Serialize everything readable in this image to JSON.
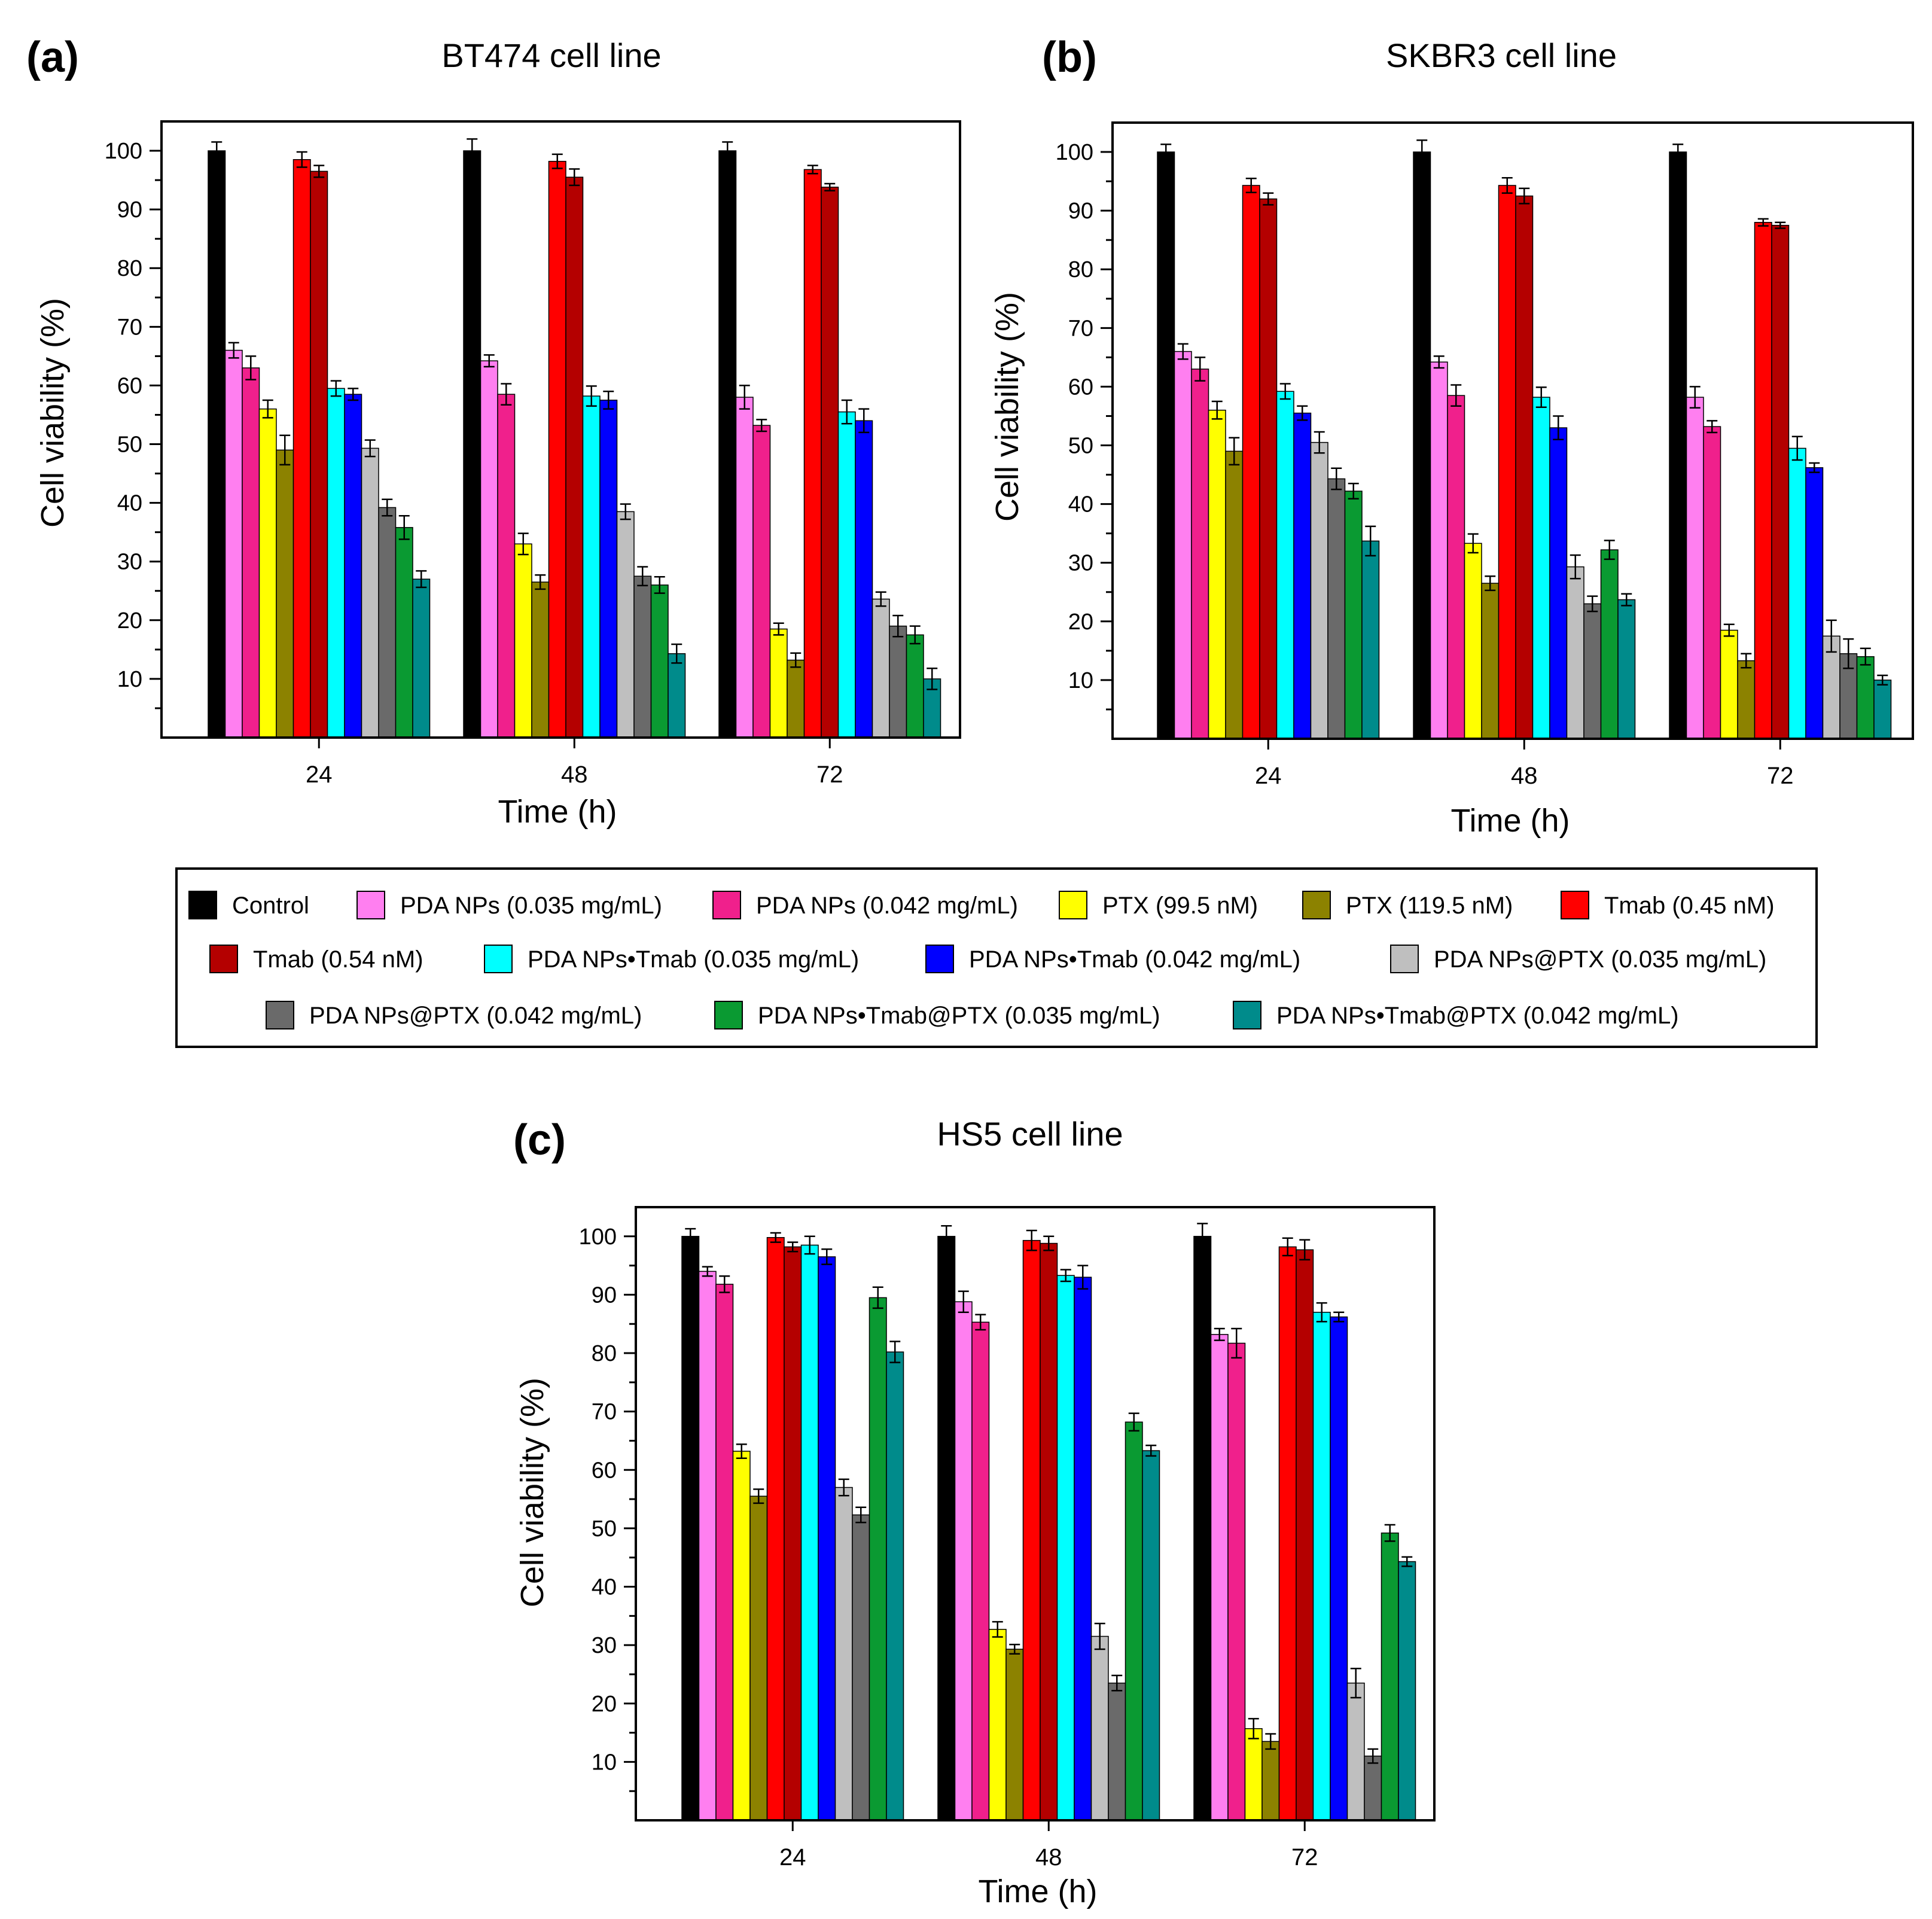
{
  "legend": {
    "series": [
      "Control",
      "PDA NPs (0.035 mg/mL)",
      "PDA NPs (0.042 mg/mL)",
      "PTX (99.5 nM)",
      "PTX (119.5 nM)",
      "Tmab (0.45 nM)",
      "Tmab (0.54 nM)",
      "PDA NPs•Tmab (0.035 mg/mL)",
      "PDA NPs•Tmab (0.042 mg/mL)",
      "PDA NPs@PTX (0.035 mg/mL)",
      "PDA NPs@PTX (0.042 mg/mL)",
      "PDA NPs•Tmab@PTX (0.035 mg/mL)",
      "PDA NPs•Tmab@PTX (0.042 mg/mL)"
    ],
    "colors": [
      "#000000",
      "#ff7ff0",
      "#f0208c",
      "#ffff00",
      "#8c8200",
      "#ff0000",
      "#b40000",
      "#00ffff",
      "#0000ff",
      "#bfbfbf",
      "#6a6a6a",
      "#0a9a32",
      "#008b8b"
    ],
    "placement": "between panels (b) and (c), full width"
  },
  "chart_data": [
    {
      "panel": "(a)",
      "type": "bar",
      "title": "BT474 cell line",
      "xlabel": "Time (h)",
      "ylabel": "Cell viability (%)",
      "categories": [
        "24",
        "48",
        "72"
      ],
      "ylim": [
        0,
        105
      ],
      "yticks": [
        10,
        20,
        30,
        40,
        50,
        60,
        70,
        80,
        90,
        100
      ],
      "series": [
        {
          "name": "Control",
          "values": [
            100,
            100,
            100
          ],
          "errors": [
            1.5,
            2,
            1.5
          ]
        },
        {
          "name": "PDA NPs (0.035 mg/mL)",
          "values": [
            66,
            64.2,
            58
          ],
          "errors": [
            1.3,
            1,
            2
          ]
        },
        {
          "name": "PDA NPs (0.042 mg/mL)",
          "values": [
            63,
            58.5,
            53.2
          ],
          "errors": [
            2,
            1.8,
            1
          ]
        },
        {
          "name": "PTX (99.5 nM)",
          "values": [
            56,
            33,
            18.5
          ],
          "errors": [
            1.5,
            1.8,
            1
          ]
        },
        {
          "name": "PTX (119.5 nM)",
          "values": [
            49,
            26.5,
            13.2
          ],
          "errors": [
            2.5,
            1.2,
            1.2
          ]
        },
        {
          "name": "Tmab (0.45 nM)",
          "values": [
            98.5,
            98.2,
            96.8
          ],
          "errors": [
            1.3,
            1.2,
            0.7
          ]
        },
        {
          "name": "Tmab (0.54 nM)",
          "values": [
            96.5,
            95.5,
            93.8
          ],
          "errors": [
            1,
            1.4,
            0.6
          ]
        },
        {
          "name": "PDA NPs•Tmab (0.035 mg/mL)",
          "values": [
            59.5,
            58.2,
            55.5
          ],
          "errors": [
            1.3,
            1.7,
            2
          ]
        },
        {
          "name": "PDA NPs•Tmab (0.042 mg/mL)",
          "values": [
            58.5,
            57.5,
            54
          ],
          "errors": [
            1,
            1.5,
            2
          ]
        },
        {
          "name": "PDA NPs@PTX (0.035 mg/mL)",
          "values": [
            49.3,
            38.5,
            23.6
          ],
          "errors": [
            1.4,
            1.3,
            1.2
          ]
        },
        {
          "name": "PDA NPs@PTX (0.042 mg/mL)",
          "values": [
            39.2,
            27.5,
            19
          ],
          "errors": [
            1.4,
            1.6,
            1.8
          ]
        },
        {
          "name": "PDA NPs•Tmab@PTX (0.035 mg/mL)",
          "values": [
            35.8,
            26,
            17.5
          ],
          "errors": [
            2,
            1.4,
            1.5
          ]
        },
        {
          "name": "PDA NPs•Tmab@PTX (0.042 mg/mL)",
          "values": [
            27,
            14.3,
            10
          ],
          "errors": [
            1.4,
            1.6,
            1.8
          ]
        }
      ]
    },
    {
      "panel": "(b)",
      "type": "bar",
      "title": "SKBR3 cell line",
      "xlabel": "Time (h)",
      "ylabel": "Cell viability (%)",
      "categories": [
        "24",
        "48",
        "72"
      ],
      "ylim": [
        0,
        105
      ],
      "yticks": [
        10,
        20,
        30,
        40,
        50,
        60,
        70,
        80,
        90,
        100
      ],
      "series": [
        {
          "name": "Control",
          "values": [
            100,
            100,
            100
          ],
          "errors": [
            1.3,
            2,
            1.3
          ]
        },
        {
          "name": "PDA NPs (0.035 mg/mL)",
          "values": [
            66,
            64.2,
            58.2
          ],
          "errors": [
            1.3,
            1,
            1.8
          ]
        },
        {
          "name": "PDA NPs (0.042 mg/mL)",
          "values": [
            63,
            58.5,
            53.2
          ],
          "errors": [
            2,
            1.8,
            1
          ]
        },
        {
          "name": "PTX (99.5 nM)",
          "values": [
            56,
            33.3,
            18.5
          ],
          "errors": [
            1.5,
            1.6,
            1
          ]
        },
        {
          "name": "PTX (119.5 nM)",
          "values": [
            49,
            26.5,
            13.3
          ],
          "errors": [
            2.3,
            1.2,
            1.2
          ]
        },
        {
          "name": "Tmab (0.45 nM)",
          "values": [
            94.3,
            94.3,
            88
          ],
          "errors": [
            1.2,
            1.3,
            0.6
          ]
        },
        {
          "name": "Tmab (0.54 nM)",
          "values": [
            92,
            92.5,
            87.5
          ],
          "errors": [
            1,
            1.3,
            0.5
          ]
        },
        {
          "name": "PDA NPs•Tmab (0.035 mg/mL)",
          "values": [
            59.2,
            58.2,
            49.5
          ],
          "errors": [
            1.3,
            1.7,
            2
          ]
        },
        {
          "name": "PDA NPs•Tmab (0.042 mg/mL)",
          "values": [
            55.5,
            53,
            46.2
          ],
          "errors": [
            1.2,
            2,
            0.8
          ]
        },
        {
          "name": "PDA NPs@PTX (0.035 mg/mL)",
          "values": [
            50.5,
            29.3,
            17.5
          ],
          "errors": [
            1.8,
            2,
            2.7
          ]
        },
        {
          "name": "PDA NPs@PTX (0.042 mg/mL)",
          "values": [
            44.3,
            23,
            14.5
          ],
          "errors": [
            1.8,
            1.3,
            2.5
          ]
        },
        {
          "name": "PDA NPs•Tmab@PTX (0.035 mg/mL)",
          "values": [
            42.2,
            32.2,
            14
          ],
          "errors": [
            1.3,
            1.6,
            1.4
          ]
        },
        {
          "name": "PDA NPs•Tmab@PTX (0.042 mg/mL)",
          "values": [
            33.7,
            23.7,
            10
          ],
          "errors": [
            2.5,
            1,
            0.8
          ]
        }
      ]
    },
    {
      "panel": "(c)",
      "type": "bar",
      "title": "HS5 cell line",
      "xlabel": "Time (h)",
      "ylabel": "Cell viability (%)",
      "categories": [
        "24",
        "48",
        "72"
      ],
      "ylim": [
        0,
        105
      ],
      "yticks": [
        10,
        20,
        30,
        40,
        50,
        60,
        70,
        80,
        90,
        100
      ],
      "series": [
        {
          "name": "Control",
          "values": [
            100,
            100,
            100
          ],
          "errors": [
            1.3,
            1.8,
            2.2
          ]
        },
        {
          "name": "PDA NPs (0.035 mg/mL)",
          "values": [
            94,
            88.8,
            83.2
          ],
          "errors": [
            0.8,
            1.8,
            1
          ]
        },
        {
          "name": "PDA NPs (0.042 mg/mL)",
          "values": [
            91.8,
            85.3,
            81.7
          ],
          "errors": [
            1.4,
            1.3,
            2.5
          ]
        },
        {
          "name": "PTX (99.5 nM)",
          "values": [
            63.2,
            32.7,
            15.7
          ],
          "errors": [
            1.2,
            1.3,
            1.7
          ]
        },
        {
          "name": "PTX (119.5 nM)",
          "values": [
            55.5,
            29.3,
            13.5
          ],
          "errors": [
            1.2,
            0.8,
            1.3
          ]
        },
        {
          "name": "Tmab (0.45 nM)",
          "values": [
            99.8,
            99.3,
            98.2
          ],
          "errors": [
            0.8,
            1.7,
            1.5
          ]
        },
        {
          "name": "Tmab (0.54 nM)",
          "values": [
            98.2,
            98.8,
            97.7
          ],
          "errors": [
            0.8,
            1.2,
            1.7
          ]
        },
        {
          "name": "PDA NPs•Tmab (0.035 mg/mL)",
          "values": [
            98.5,
            93.3,
            87
          ],
          "errors": [
            1.5,
            1,
            1.6
          ]
        },
        {
          "name": "PDA NPs•Tmab (0.042 mg/mL)",
          "values": [
            96.5,
            93,
            86.2
          ],
          "errors": [
            1.3,
            2,
            0.8
          ]
        },
        {
          "name": "PDA NPs@PTX (0.035 mg/mL)",
          "values": [
            57,
            31.5,
            23.5
          ],
          "errors": [
            1.4,
            2.2,
            2.5
          ]
        },
        {
          "name": "PDA NPs@PTX (0.042 mg/mL)",
          "values": [
            52.3,
            23.5,
            11
          ],
          "errors": [
            1.3,
            1.3,
            1.2
          ]
        },
        {
          "name": "PDA NPs•Tmab@PTX (0.035 mg/mL)",
          "values": [
            89.5,
            68.2,
            49.2
          ],
          "errors": [
            1.8,
            1.5,
            1.4
          ]
        },
        {
          "name": "PDA NPs•Tmab@PTX (0.042 mg/mL)",
          "values": [
            80.2,
            63.3,
            44.3
          ],
          "errors": [
            1.8,
            0.9,
            0.8
          ]
        }
      ]
    }
  ]
}
